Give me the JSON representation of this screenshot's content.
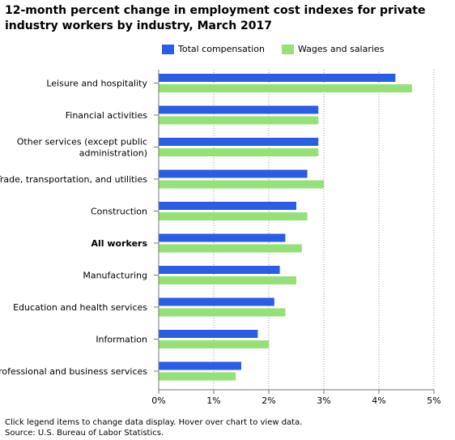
{
  "chart_data": {
    "type": "bar",
    "orientation": "horizontal",
    "title": "12-month percent change in employment cost indexes for private industry workers by industry, March 2017",
    "categories": [
      "Leisure and hospitality",
      "Financial activities",
      "Other services (except public administration)",
      "Trade, transportation, and utilities",
      "Construction",
      "All workers",
      "Manufacturing",
      "Education and health services",
      "Information",
      "Professional and business services"
    ],
    "category_lines": [
      [
        "Leisure and hospitality"
      ],
      [
        "Financial activities"
      ],
      [
        "Other services (except public",
        "administration)"
      ],
      [
        "Trade, transportation, and utilities"
      ],
      [
        "Construction"
      ],
      [
        "All workers"
      ],
      [
        "Manufacturing"
      ],
      [
        "Education and health services"
      ],
      [
        "Information"
      ],
      [
        "Professional and business services"
      ]
    ],
    "bold_category": "All workers",
    "series": [
      {
        "name": "Total compensation",
        "color": "#2b5ce6",
        "values": [
          4.3,
          2.9,
          2.9,
          2.7,
          2.5,
          2.3,
          2.2,
          2.1,
          1.8,
          1.5
        ]
      },
      {
        "name": "Wages and salaries",
        "color": "#96e07a",
        "values": [
          4.6,
          2.9,
          2.9,
          3.0,
          2.7,
          2.6,
          2.5,
          2.3,
          2.0,
          1.4
        ]
      }
    ],
    "x_ticks": [
      "0%",
      "1%",
      "2%",
      "3%",
      "4%",
      "5%"
    ],
    "xlim": [
      0,
      5
    ],
    "grid": "vertical dotted",
    "legend_position": "top"
  },
  "footer": {
    "note": "Click legend items to change data display. Hover over chart to view data.",
    "source": "Source: U.S. Bureau of Labor Statistics."
  }
}
